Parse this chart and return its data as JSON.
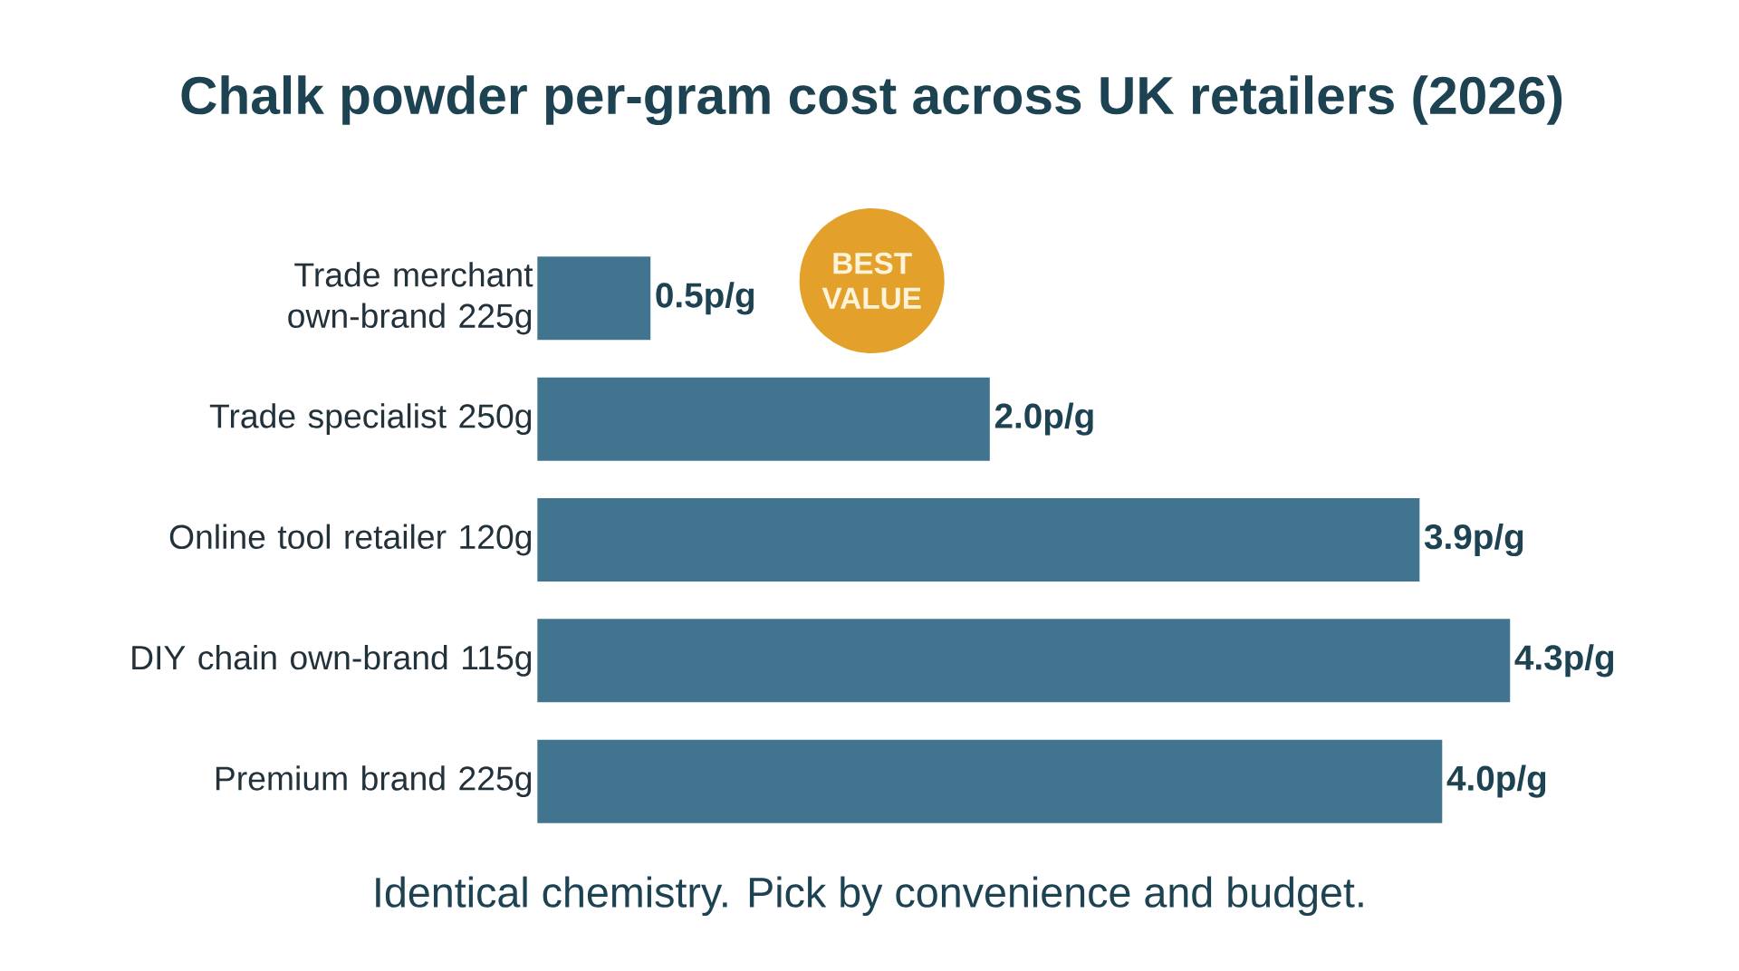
{
  "chart_data": {
    "type": "bar",
    "orientation": "horizontal",
    "title": "Chalk powder per-gram cost across UK retailers (2026)",
    "categories": [
      "Trade merchant own-brand 225g",
      "Trade specialist 250g",
      "Online tool retailer 120g",
      "DIY chain own-brand 115g",
      "Premium brand 225g"
    ],
    "values": [
      0.5,
      2.0,
      3.9,
      4.3,
      4.0
    ],
    "value_labels": [
      "0.5p/g",
      "2.0p/g",
      "3.9p/g",
      "4.3p/g",
      "4.0p/g"
    ],
    "color": "#41758f",
    "annotations": [
      "BEST VALUE",
      "Identical chemistry. Pick by convenience and budget."
    ]
  }
}
